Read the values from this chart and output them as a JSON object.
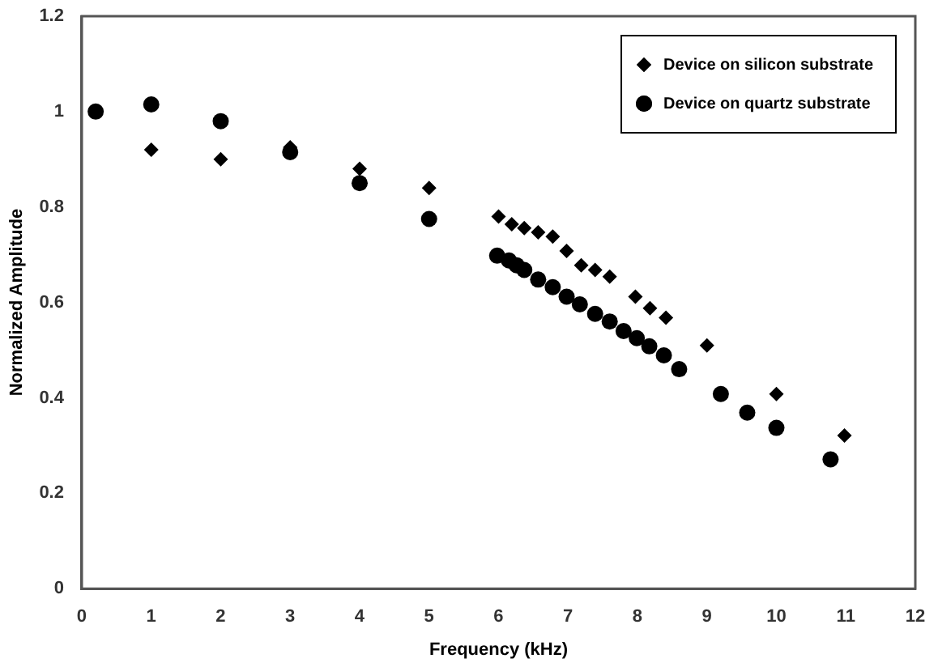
{
  "chart_data": {
    "type": "scatter",
    "xlabel": "Frequency (kHz)",
    "ylabel": "Normalized Amplitude",
    "xlim": [
      0,
      12
    ],
    "xticks": [
      0,
      1,
      2,
      3,
      4,
      5,
      6,
      7,
      8,
      9,
      10,
      11,
      12
    ],
    "ylim": [
      0,
      1.2
    ],
    "yticks": [
      0,
      0.2,
      0.4,
      0.6,
      0.8,
      1,
      1.2
    ],
    "grid": false,
    "legend": "top right",
    "series": [
      {
        "name": "Device on silicon substrate",
        "color": "#000000",
        "marker": "diamond",
        "x": [
          1,
          2,
          3,
          4,
          5,
          6.0,
          6.19,
          6.37,
          6.57,
          6.78,
          6.98,
          7.19,
          7.39,
          7.6,
          7.97,
          8.18,
          8.41,
          9.0,
          10.0,
          10.98
        ],
        "values": [
          0.92,
          0.9,
          0.925,
          0.88,
          0.84,
          0.78,
          0.764,
          0.756,
          0.747,
          0.738,
          0.708,
          0.678,
          0.668,
          0.654,
          0.612,
          0.588,
          0.568,
          0.51,
          0.408,
          0.321
        ]
      },
      {
        "name": "Device on quartz substrate",
        "color": "#000000",
        "marker": "circle",
        "x": [
          0.2,
          1,
          2,
          3,
          4,
          5,
          5.98,
          6.15,
          6.26,
          6.37,
          6.57,
          6.78,
          6.98,
          7.17,
          7.39,
          7.6,
          7.8,
          7.99,
          8.17,
          8.38,
          8.6,
          9.2,
          9.58,
          10.0,
          10.78
        ],
        "values": [
          1.0,
          1.015,
          0.98,
          0.915,
          0.85,
          0.775,
          0.698,
          0.688,
          0.678,
          0.668,
          0.648,
          0.632,
          0.612,
          0.596,
          0.576,
          0.56,
          0.54,
          0.525,
          0.508,
          0.489,
          0.46,
          0.408,
          0.369,
          0.337,
          0.271
        ]
      }
    ]
  }
}
